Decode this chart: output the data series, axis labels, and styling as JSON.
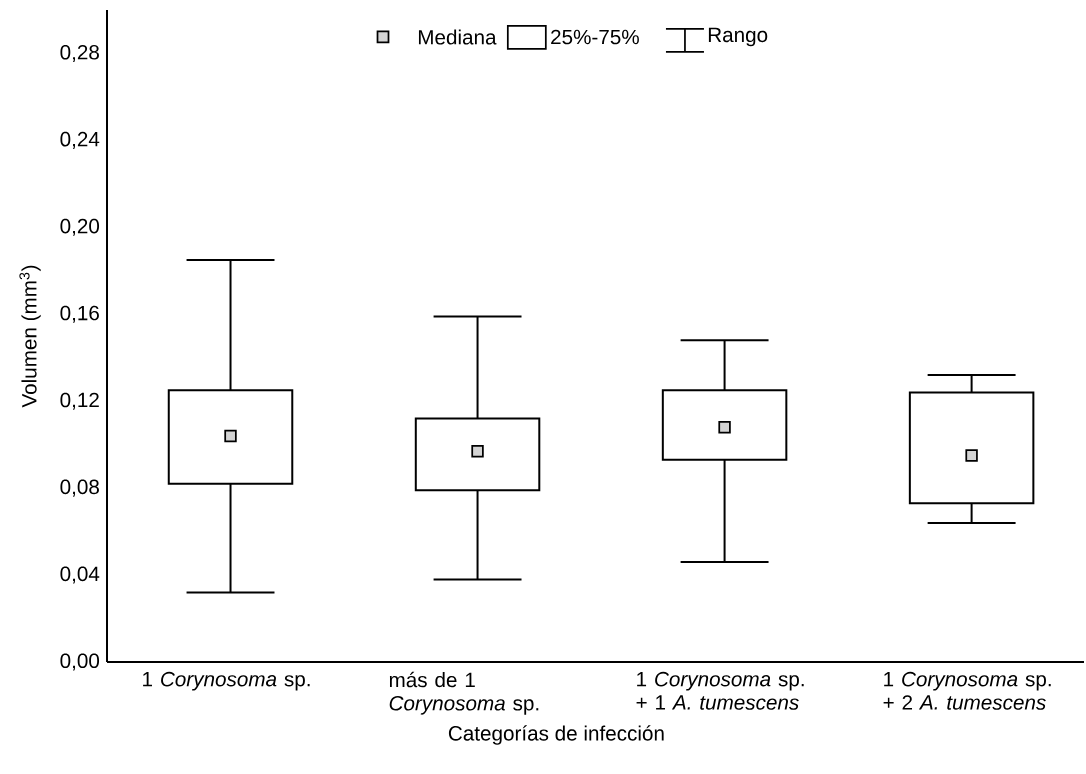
{
  "chart_data": {
    "type": "box",
    "categories": [
      "1 *Corynosoma* sp.",
      "más de 1 *Corynosoma* sp.",
      "1 *Corynosoma* sp. + 1 *A. tumescens*",
      "1 *Corynosoma* sp. + 2 *A. tumescens*"
    ],
    "boxes": [
      {
        "low": 0.032,
        "q1": 0.082,
        "median": 0.104,
        "q3": 0.125,
        "high": 0.185
      },
      {
        "low": 0.038,
        "q1": 0.079,
        "median": 0.097,
        "q3": 0.112,
        "high": 0.159
      },
      {
        "low": 0.046,
        "q1": 0.093,
        "median": 0.108,
        "q3": 0.125,
        "high": 0.148
      },
      {
        "low": 0.064,
        "q1": 0.073,
        "median": 0.095,
        "q3": 0.124,
        "high": 0.132
      }
    ],
    "xlabel": "Categorías de infección",
    "ylabel": "Volumen (mm$^{3}$)",
    "ylim": [
      0,
      0.3
    ],
    "yticks": [
      {
        "value": 0,
        "label": "0,00"
      },
      {
        "value": 0.04,
        "label": "0,04"
      },
      {
        "value": 0.08,
        "label": "0,08"
      },
      {
        "value": 0.12,
        "label": "0,12"
      },
      {
        "value": 0.16,
        "label": "0,16"
      },
      {
        "value": 0.2,
        "label": "0,20"
      },
      {
        "value": 0.24,
        "label": "0,24"
      },
      {
        "value": 0.28,
        "label": "0,28"
      }
    ],
    "marker": "square",
    "color": "#000000",
    "annotations": [
      "Mediana",
      "25%-75%",
      "Rango"
    ]
  }
}
